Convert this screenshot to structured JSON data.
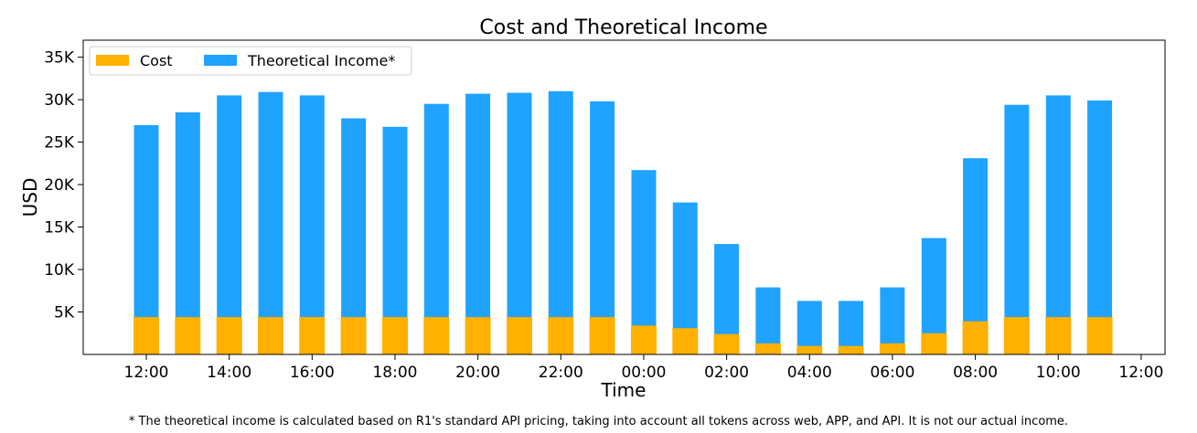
{
  "chart_data": {
    "type": "bar",
    "title": "Cost and Theoretical Income",
    "xlabel": "Time",
    "ylabel": "USD",
    "categories": [
      "12:00",
      "13:00",
      "14:00",
      "15:00",
      "16:00",
      "17:00",
      "18:00",
      "19:00",
      "20:00",
      "21:00",
      "22:00",
      "23:00",
      "00:00",
      "01:00",
      "02:00",
      "03:00",
      "04:00",
      "05:00",
      "06:00",
      "07:00",
      "08:00",
      "09:00",
      "10:00",
      "11:00",
      "12:00"
    ],
    "x_tick_labels": [
      "12:00",
      "14:00",
      "16:00",
      "18:00",
      "20:00",
      "22:00",
      "00:00",
      "02:00",
      "04:00",
      "06:00",
      "08:00",
      "10:00",
      "12:00"
    ],
    "y_tick_labels": [
      "5K",
      "10K",
      "15K",
      "20K",
      "25K",
      "30K",
      "35K"
    ],
    "y_ticks": [
      5000,
      10000,
      15000,
      20000,
      25000,
      30000,
      35000
    ],
    "ylim": [
      0,
      37000
    ],
    "legend_position": "top-left",
    "series": [
      {
        "name": "Cost",
        "color": "#ffb000",
        "values": [
          4400,
          4400,
          4400,
          4400,
          4400,
          4400,
          4400,
          4400,
          4400,
          4400,
          4400,
          4400,
          3400,
          3100,
          2400,
          1300,
          1000,
          1000,
          1300,
          2500,
          3900,
          4400,
          4400,
          4400,
          null
        ]
      },
      {
        "name": "Theoretical Income*",
        "color": "#1fa3ff",
        "values": [
          27000,
          28500,
          30500,
          30900,
          30500,
          27800,
          26800,
          29500,
          30700,
          30800,
          31000,
          29800,
          21700,
          17900,
          13000,
          7900,
          6300,
          6300,
          7900,
          13700,
          23100,
          29400,
          30500,
          29900,
          null
        ]
      }
    ],
    "footnote": "* The theoretical income is calculated based on R1's standard API pricing, taking into account all tokens across web, APP, and API. It is not our actual income."
  }
}
